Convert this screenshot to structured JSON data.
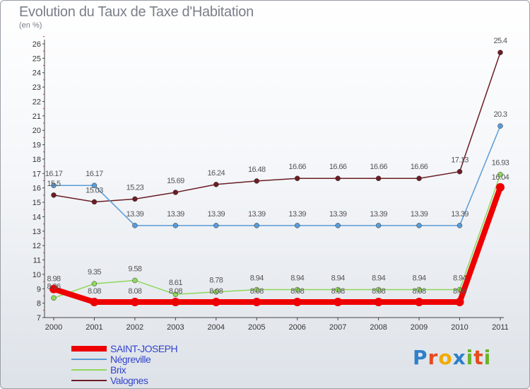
{
  "title": "Evolution du Taux de Taxe d'Habitation",
  "unit": "(en %)",
  "logo": {
    "letters": [
      {
        "ch": "P",
        "color": "#2f80c8"
      },
      {
        "ch": "r",
        "color": "#e64a1e"
      },
      {
        "ch": "o",
        "color": "#f2a900"
      },
      {
        "ch": "x",
        "color": "#2f80c8"
      },
      {
        "ch": "i",
        "color": "#6ab42d"
      },
      {
        "ch": "t",
        "color": "#e64a1e"
      },
      {
        "ch": "i",
        "color": "#6ab42d"
      }
    ]
  },
  "chart_data": {
    "type": "line",
    "title": "Evolution du Taux de Taxe d'Habitation",
    "ylabel": "(en %)",
    "xlabel": "",
    "x": [
      "2000",
      "2001",
      "2002",
      "2003",
      "2004",
      "2005",
      "2006",
      "2007",
      "2008",
      "2009",
      "2010",
      "2011"
    ],
    "ylim": [
      7,
      26
    ],
    "yticks": [
      "7",
      "8",
      "9",
      "10",
      "11",
      "12",
      "13",
      "14",
      "15",
      "16",
      "17",
      "18",
      "19",
      "20",
      "21",
      "22",
      "23",
      "24",
      "25",
      "26"
    ],
    "grid": false,
    "legend_position": "bottom-left",
    "series": [
      {
        "name": "SAINT-JOSEPH",
        "color": "#ee0000",
        "values": [
          8.98,
          8.08,
          8.08,
          8.08,
          8.08,
          8.08,
          8.08,
          8.08,
          8.08,
          8.08,
          8.08,
          16.04
        ],
        "labels": [
          "8.98",
          "8.08",
          "8.08",
          "8.08",
          "8.08",
          "8.08",
          "8.08",
          "8.08",
          "8.08",
          "8.08",
          "8.08",
          "16.04"
        ]
      },
      {
        "name": "Négreville",
        "color": "#5b9bd5",
        "values": [
          16.17,
          16.17,
          13.39,
          13.39,
          13.39,
          13.39,
          13.39,
          13.39,
          13.39,
          13.39,
          13.39,
          20.3
        ],
        "labels": [
          "16.17",
          "16.17",
          "13.39",
          "13.39",
          "13.39",
          "13.39",
          "13.39",
          "13.39",
          "13.39",
          "13.39",
          "13.39",
          "20.3"
        ]
      },
      {
        "name": "Brix",
        "color": "#8ed85a",
        "values": [
          8.36,
          9.35,
          9.58,
          8.61,
          8.78,
          8.94,
          8.94,
          8.94,
          8.94,
          8.94,
          8.94,
          16.93
        ],
        "labels": [
          "8.36",
          "9.35",
          "9.58",
          "8.61",
          "8.78",
          "8.94",
          "8.94",
          "8.94",
          "8.94",
          "8.94",
          "8.94",
          "16.93"
        ]
      },
      {
        "name": "Valognes",
        "color": "#6b1d25",
        "values": [
          15.5,
          15.03,
          15.23,
          15.69,
          16.24,
          16.48,
          16.66,
          16.66,
          16.66,
          16.66,
          17.13,
          25.4
        ],
        "labels": [
          "15.5",
          "15.03",
          "15.23",
          "15.69",
          "16.24",
          "16.48",
          "16.66",
          "16.66",
          "16.66",
          "16.66",
          "17.13",
          "25.4"
        ]
      }
    ]
  }
}
